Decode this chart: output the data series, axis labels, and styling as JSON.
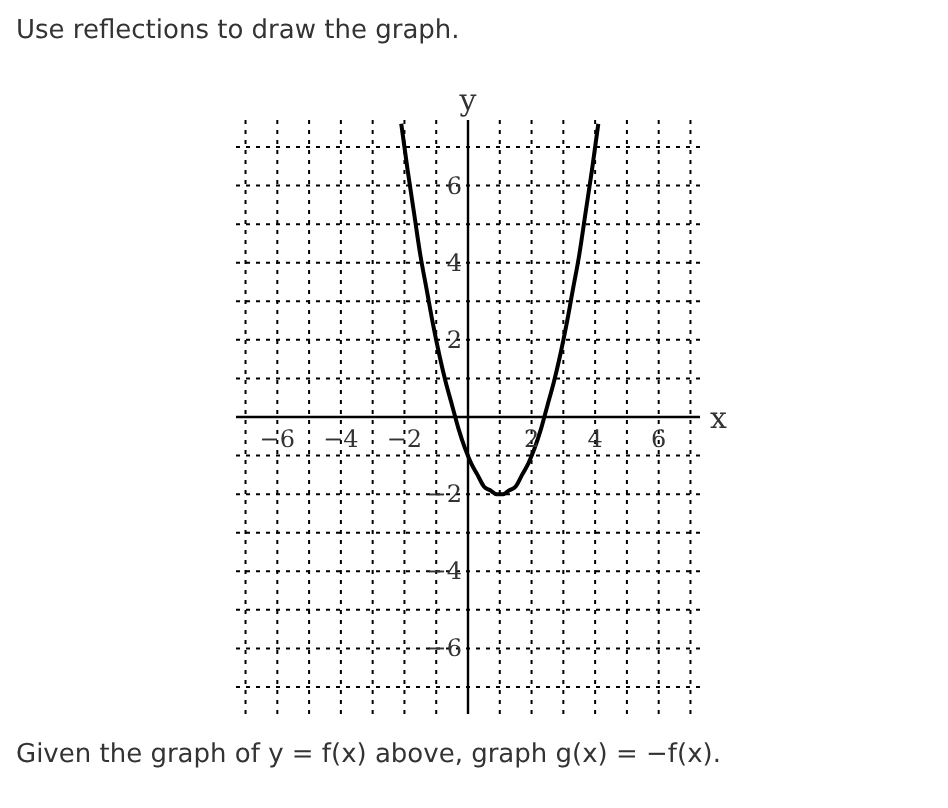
{
  "chart_data": {
    "type": "line",
    "title": "Use reflections to draw the graph.",
    "xlabel": "x",
    "ylabel": "y",
    "annotations": [
      "Given the graph of y = f(x) above, graph g(x) = −f(x)."
    ],
    "x": [
      -2.1,
      -1.9,
      -1.7,
      -1.5,
      -1.3,
      -1.1,
      -0.9,
      -0.7,
      -0.5,
      -0.3,
      -0.1,
      0.1,
      0.3,
      0.5,
      0.7,
      0.9,
      1.0,
      1.1,
      1.3,
      1.5,
      1.7,
      1.9,
      2.1,
      2.3,
      2.5,
      2.7,
      2.9,
      3.1,
      3.3,
      3.5,
      3.7,
      3.9,
      4.1
    ],
    "series": [
      {
        "color": "#000000",
        "values": [
          7.6,
          6.4,
          5.3,
          4.2,
          3.3,
          2.4,
          1.6,
          0.9,
          0.3,
          -0.3,
          -0.8,
          -1.2,
          -1.5,
          -1.8,
          -1.9,
          -2,
          -2,
          -2,
          -1.9,
          -1.8,
          -1.5,
          -1.2,
          -0.8,
          -0.3,
          0.3,
          0.9,
          1.6,
          2.4,
          3.3,
          4.2,
          5.3,
          6.4,
          7.6
        ]
      }
    ],
    "xlim": [
      -7.3,
      7.3
    ],
    "ylim": [
      -7.7,
      7.7
    ],
    "xticks": [
      {
        "value": -7,
        "label": null
      },
      {
        "value": -6,
        "label": "−6"
      },
      {
        "value": -5,
        "label": null
      },
      {
        "value": -4,
        "label": "−4"
      },
      {
        "value": -3,
        "label": null
      },
      {
        "value": -2,
        "label": "−2"
      },
      {
        "value": -1,
        "label": null
      },
      {
        "value": 0,
        "label": null
      },
      {
        "value": 1,
        "label": null
      },
      {
        "value": 2,
        "label": "2"
      },
      {
        "value": 3,
        "label": null
      },
      {
        "value": 4,
        "label": "4"
      },
      {
        "value": 5,
        "label": null
      },
      {
        "value": 6,
        "label": "6"
      },
      {
        "value": 7,
        "label": null
      }
    ],
    "yticks": [
      {
        "value": -7,
        "label": null
      },
      {
        "value": -6,
        "label": "−6"
      },
      {
        "value": -5,
        "label": null
      },
      {
        "value": -4,
        "label": "−4"
      },
      {
        "value": -3,
        "label": null
      },
      {
        "value": -2,
        "label": "−2"
      },
      {
        "value": -1,
        "label": null
      },
      {
        "value": 0,
        "label": null
      },
      {
        "value": 1,
        "label": null
      },
      {
        "value": 2,
        "label": "2"
      },
      {
        "value": 3,
        "label": null
      },
      {
        "value": 4,
        "label": "4"
      },
      {
        "value": 5,
        "label": null
      },
      {
        "value": 6,
        "label": "6"
      },
      {
        "value": 7,
        "label": null
      }
    ],
    "grid": true,
    "marker": "none",
    "line_style": "solid"
  }
}
